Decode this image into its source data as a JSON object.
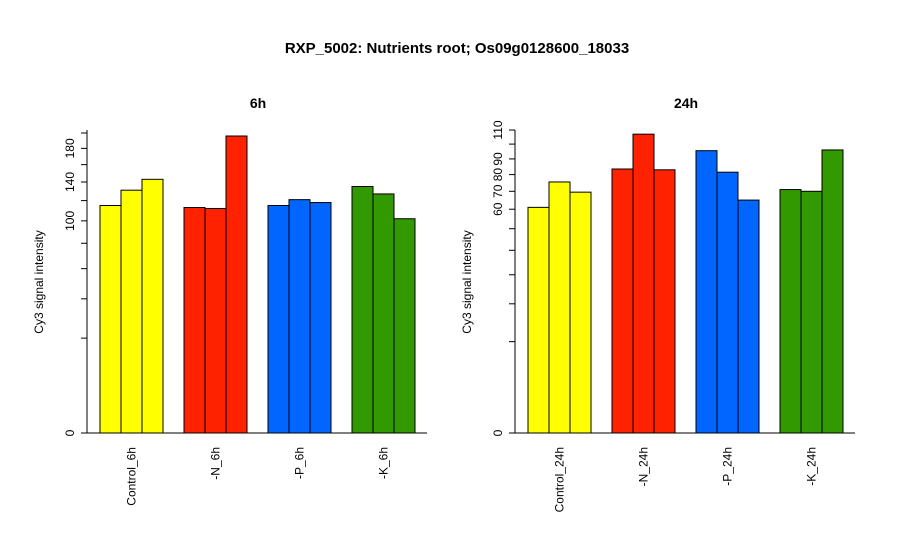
{
  "figure": {
    "title": "RXP_5002: Nutrients root; Os09g0128600_18033"
  },
  "chart_data": [
    {
      "type": "bar",
      "title": "6h",
      "ylabel": "Cy3 signal intensity",
      "xlabel": "",
      "y_scale": "sqrt",
      "ylim": [
        0,
        204
      ],
      "yticks": [
        0,
        100,
        140,
        180
      ],
      "categories": [
        "Control_6h",
        "-N_6h",
        "-P_6h",
        "-K_6h"
      ],
      "bars_per_group": 3,
      "series": [
        {
          "values": [
            115,
            113,
            115,
            135
          ]
        },
        {
          "values": [
            131,
            112,
            121,
            127
          ]
        },
        {
          "values": [
            143,
            196,
            118,
            102
          ]
        }
      ],
      "group_colors": [
        "#ffff00",
        "#ff2200",
        "#0066ff",
        "#339900"
      ]
    },
    {
      "type": "bar",
      "title": "24h",
      "ylabel": "Cy3 signal intensity",
      "xlabel": "",
      "y_scale": "sqrt",
      "ylim": [
        0,
        110
      ],
      "yticks": [
        0,
        60,
        70,
        80,
        90,
        110
      ],
      "categories": [
        "Control_24h",
        "-N_24h",
        "-P_24h",
        "-K_24h"
      ],
      "bars_per_group": 3,
      "series": [
        {
          "values": [
            61,
            83.5,
            95.5,
            71
          ]
        },
        {
          "values": [
            75.5,
            107,
            81.5,
            70
          ]
        },
        {
          "values": [
            69.5,
            83,
            65,
            96
          ]
        }
      ],
      "group_colors": [
        "#ffff00",
        "#ff2200",
        "#0066ff",
        "#339900"
      ]
    }
  ]
}
